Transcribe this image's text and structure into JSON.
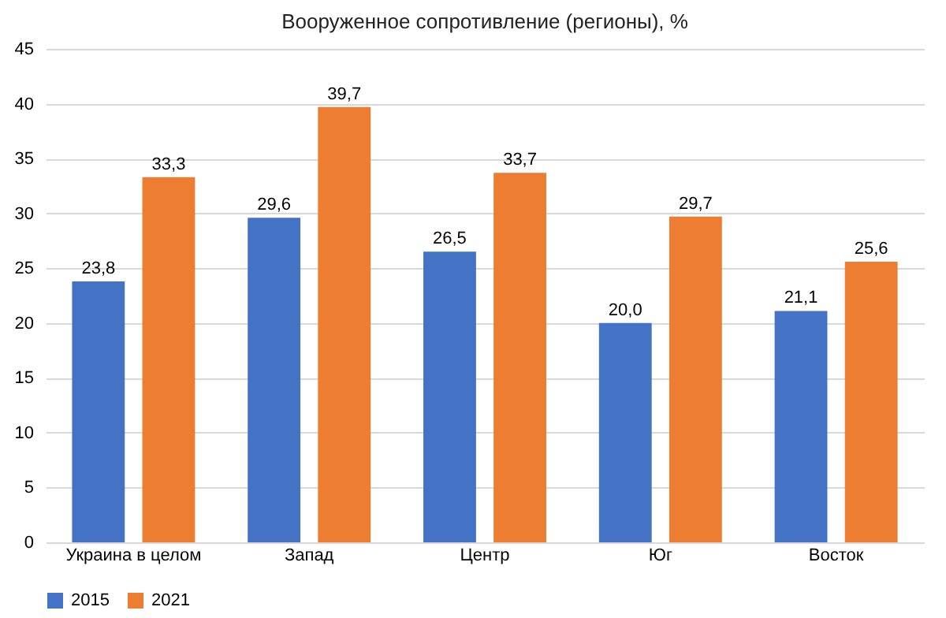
{
  "chart_data": {
    "type": "bar",
    "title": "Вооруженное сопротивление (регионы), %",
    "categories": [
      "Украина в целом",
      "Запад",
      "Центр",
      "Юг",
      "Восток"
    ],
    "series": [
      {
        "name": "2015",
        "color": "#4472c4",
        "values": [
          23.8,
          29.6,
          26.5,
          20.0,
          21.1
        ],
        "value_labels": [
          "23,8",
          "29,6",
          "26,5",
          "20,0",
          "21,1"
        ]
      },
      {
        "name": "2021",
        "color": "#ed7d31",
        "values": [
          33.3,
          39.7,
          33.7,
          29.7,
          25.6
        ],
        "value_labels": [
          "33,3",
          "39,7",
          "33,7",
          "29,7",
          "25,6"
        ]
      }
    ],
    "ylim": [
      0,
      45
    ],
    "yticks": [
      0,
      5,
      10,
      15,
      20,
      25,
      30,
      35,
      40,
      45
    ],
    "grid": "y",
    "legend": "bottom"
  }
}
